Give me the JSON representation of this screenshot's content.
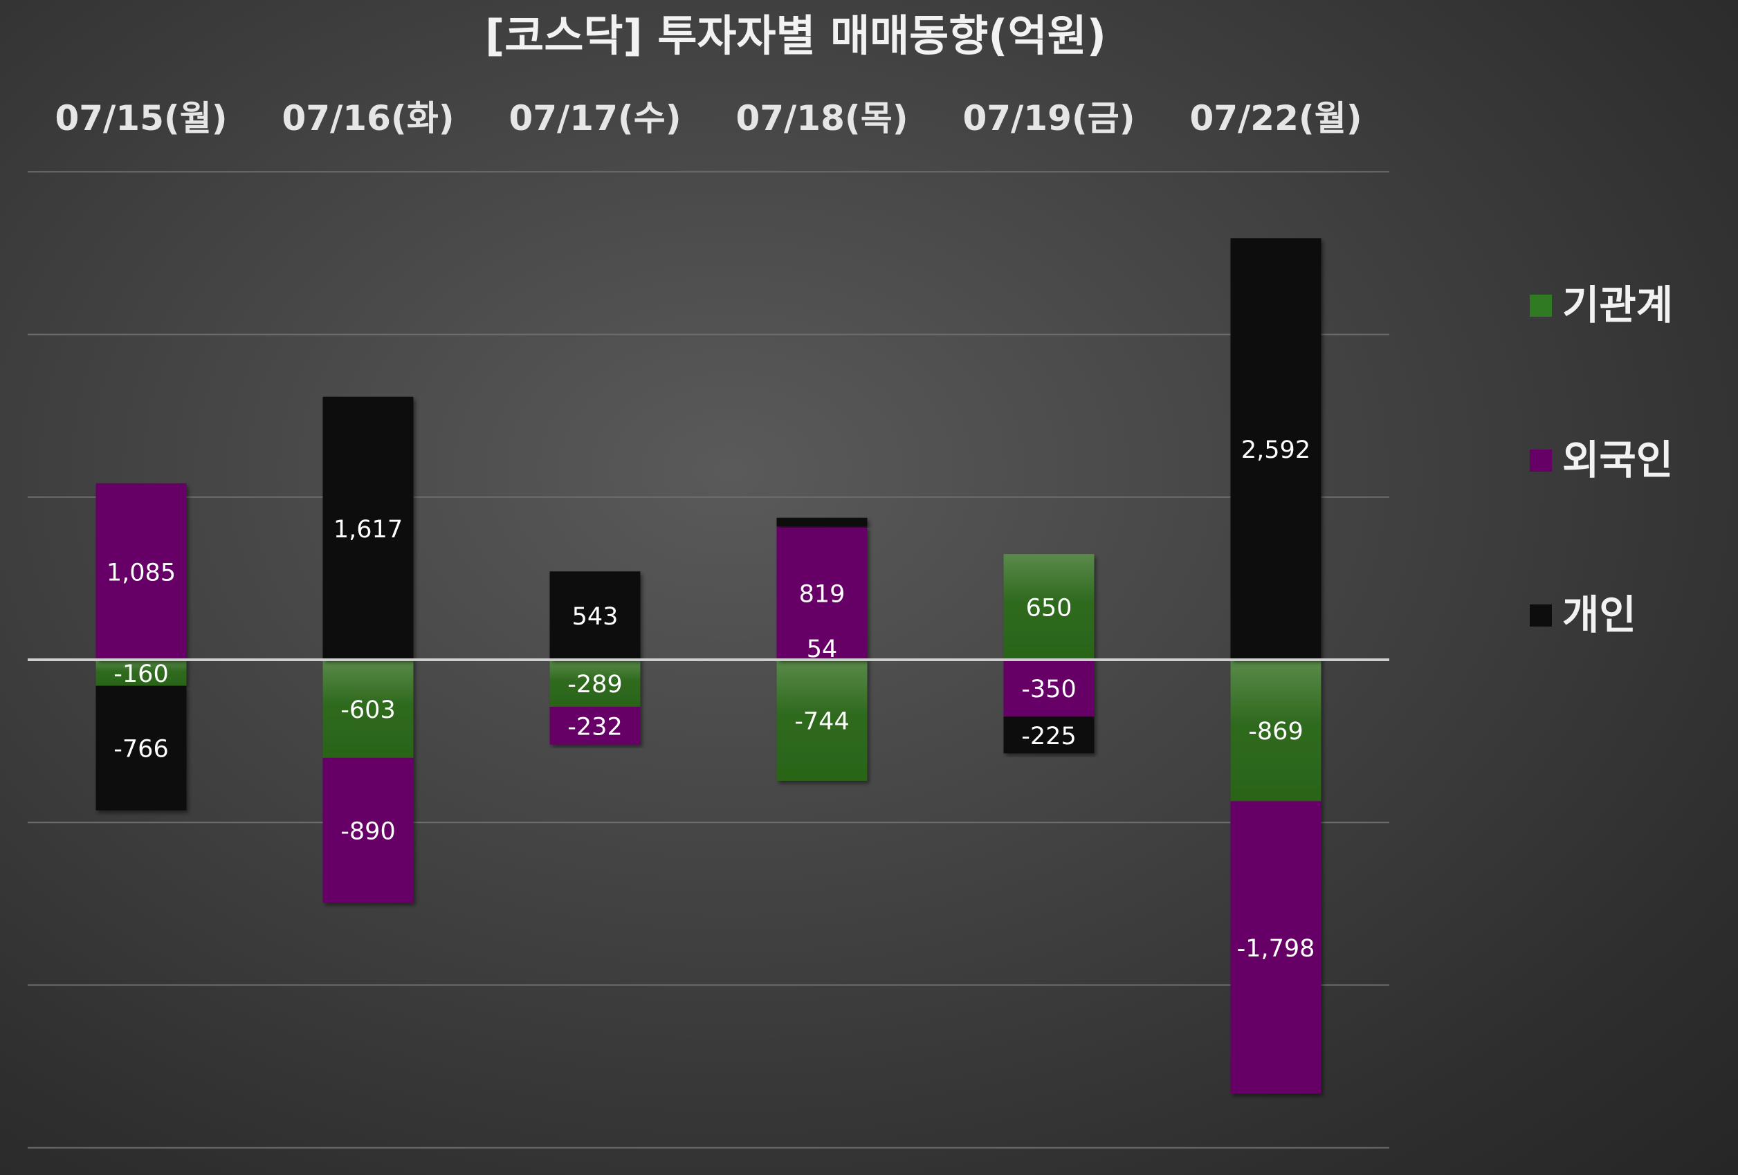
{
  "chart_data": {
    "type": "bar",
    "title": "[코스닥] 투자자별 매매동향(억원)",
    "categories": [
      "07/15(월)",
      "07/16(화)",
      "07/17(수)",
      "07/18(목)",
      "07/19(금)",
      "07/22(월)"
    ],
    "series": [
      {
        "name": "기관계",
        "color": "#2e6b1e",
        "values": [
          -160,
          -603,
          -289,
          -744,
          650,
          -869
        ],
        "labels": [
          "-160",
          "-603",
          "-289",
          "-744",
          "650",
          "-869"
        ]
      },
      {
        "name": "외국인",
        "color": "#660066",
        "values": [
          1085,
          -890,
          -232,
          819,
          -350,
          -1798
        ],
        "labels": [
          "1,085",
          "-890",
          "-232",
          "819",
          "-350",
          "-1,798"
        ]
      },
      {
        "name": "개인",
        "color": "#0d0d0d",
        "values": [
          -766,
          1617,
          543,
          54,
          -225,
          2592
        ],
        "labels": [
          "-766",
          "1,617",
          "543",
          "54",
          "-225",
          "2,592"
        ]
      }
    ],
    "ylim": [
      -3000,
      3000
    ],
    "gridlines": true,
    "legend_position": "right"
  }
}
